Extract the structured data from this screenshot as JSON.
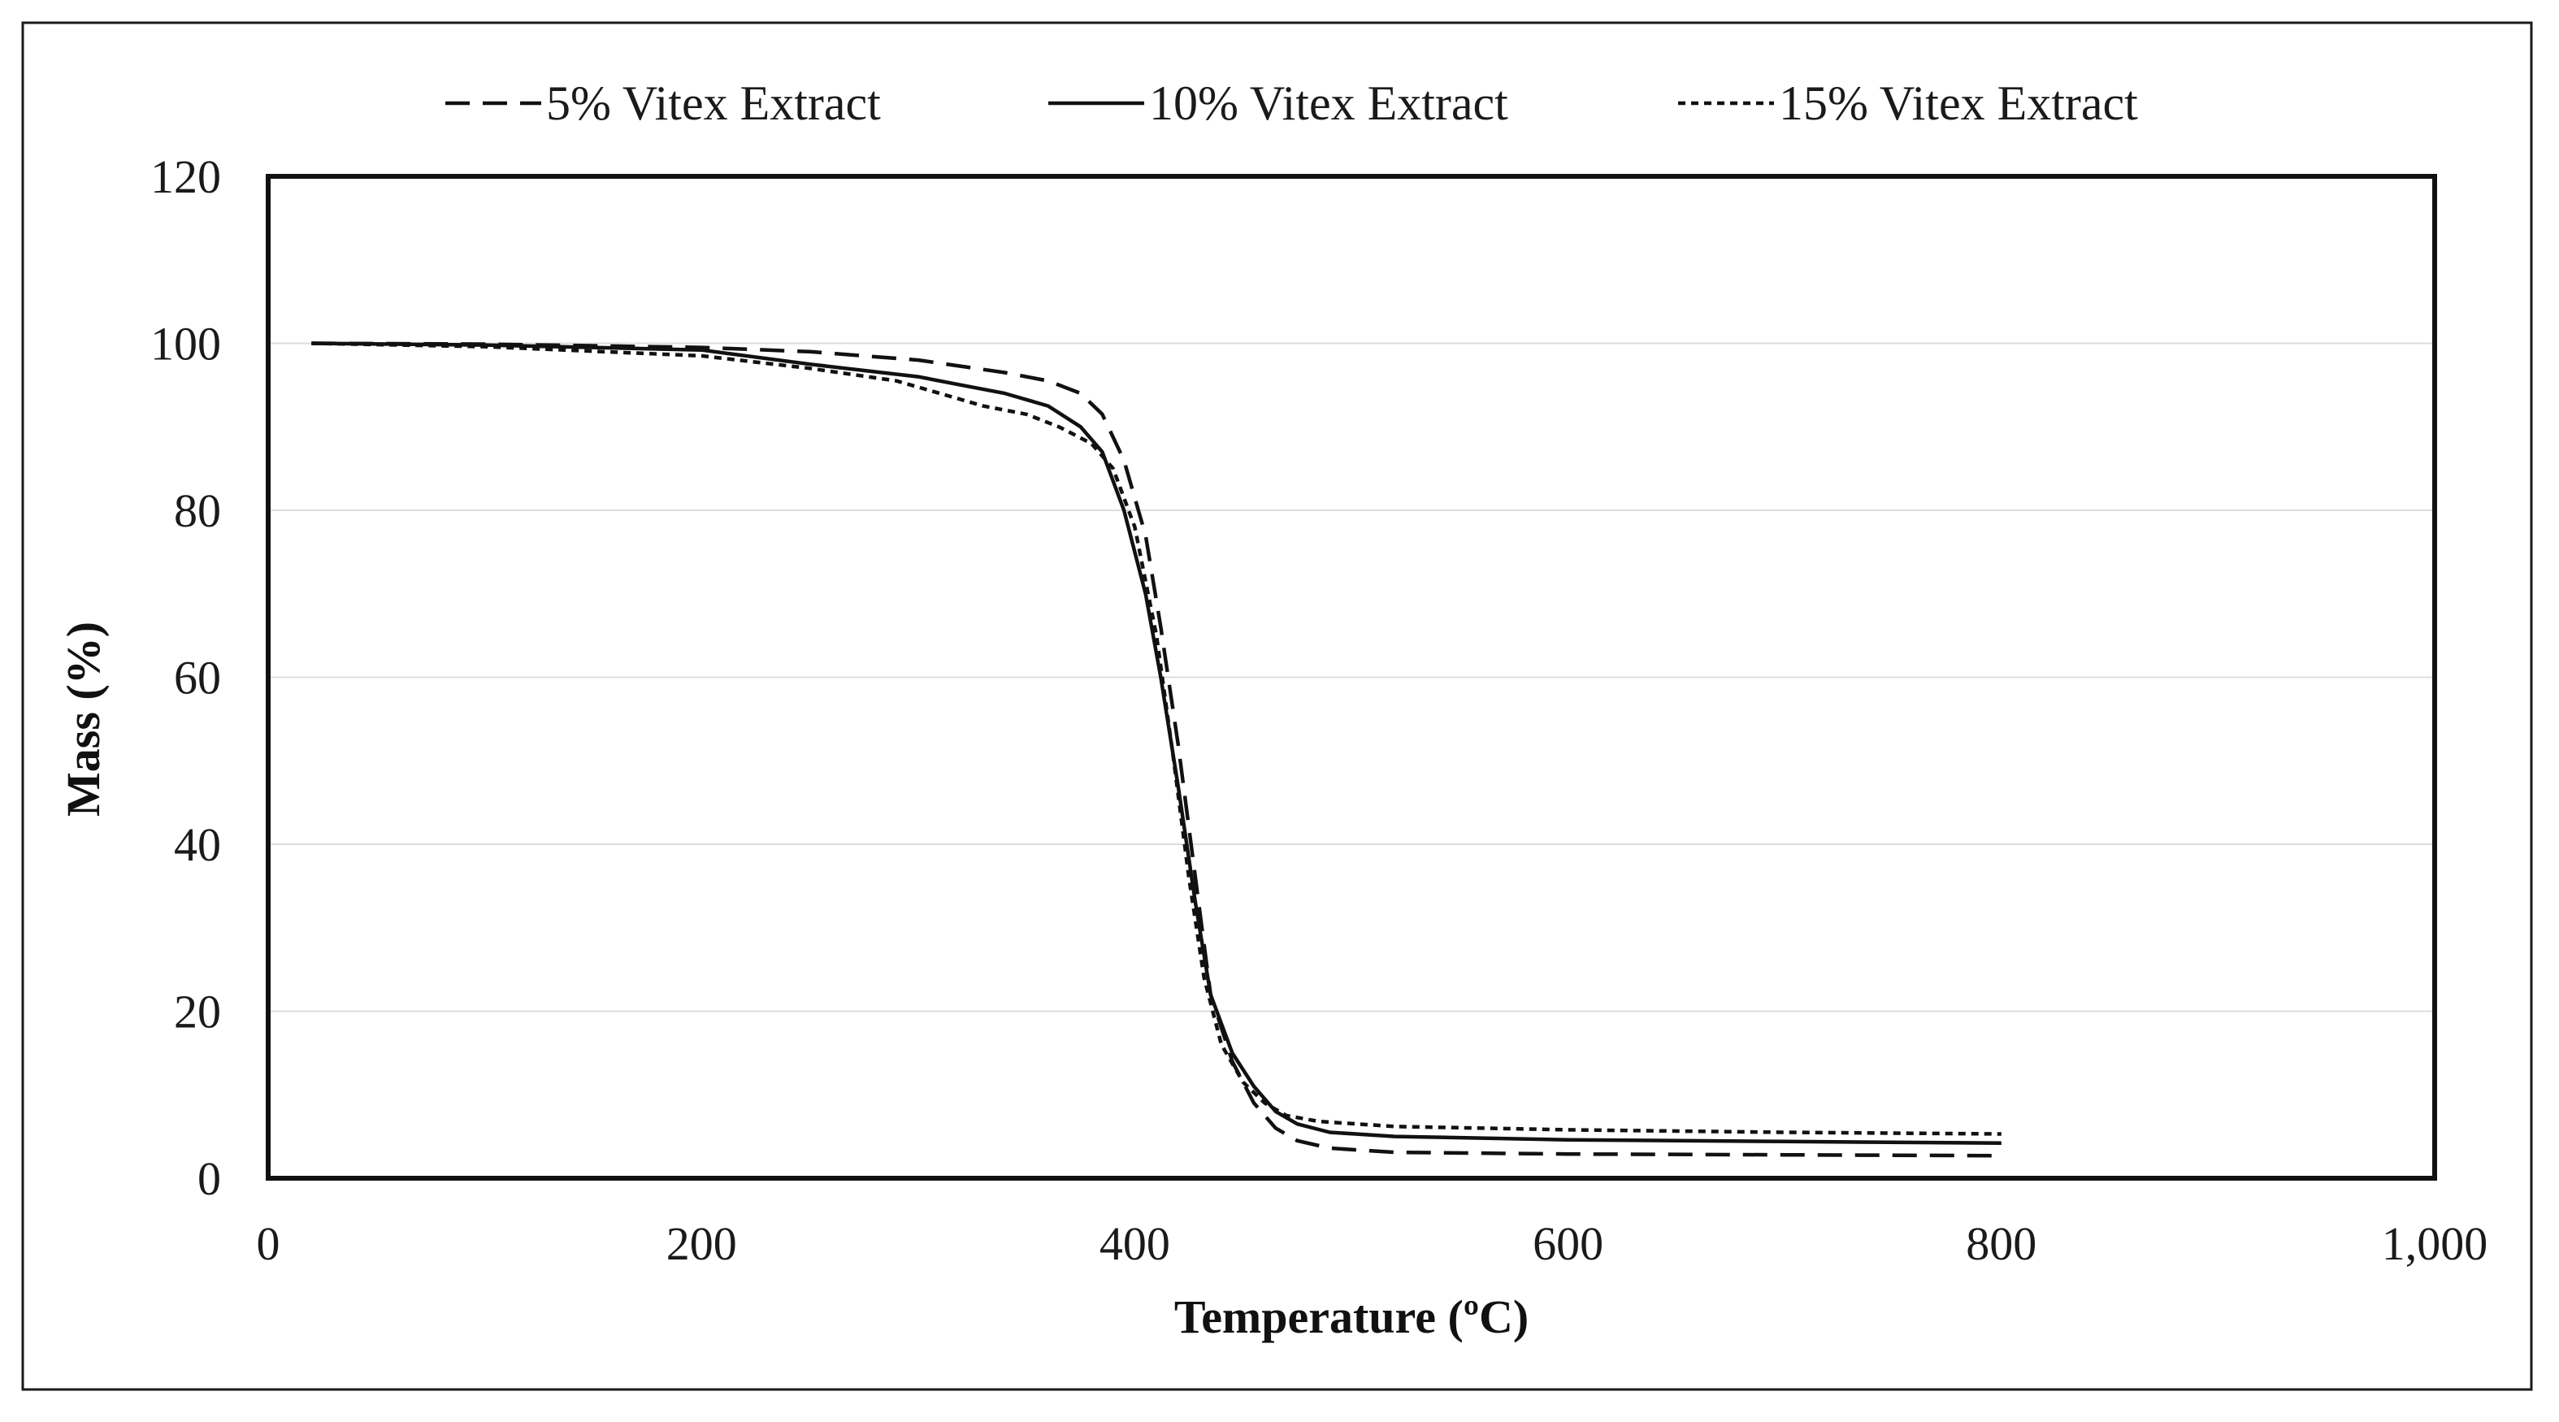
{
  "chart_data": {
    "type": "line",
    "title": "",
    "xlabel": "Temperature (ºC)",
    "ylabel": "Mass (%)",
    "xlim": [
      0,
      1000
    ],
    "ylim": [
      0,
      120
    ],
    "xticks": [
      0,
      200,
      400,
      600,
      800,
      1000
    ],
    "xtick_labels": [
      "0",
      "200",
      "400",
      "600",
      "800",
      "1,000"
    ],
    "yticks": [
      0,
      20,
      40,
      60,
      80,
      100,
      120
    ],
    "ytick_labels": [
      "0",
      "20",
      "40",
      "60",
      "80",
      "100",
      "120"
    ],
    "grid": true,
    "legend_position": "top",
    "series": [
      {
        "name": "5% Vitex Extract",
        "line_style": "dashed",
        "x": [
          20,
          100,
          200,
          250,
          300,
          340,
          360,
          375,
          385,
          395,
          405,
          412,
          420,
          428,
          435,
          445,
          455,
          465,
          475,
          490,
          520,
          600,
          700,
          800
        ],
        "y": [
          100,
          99.9,
          99.5,
          99,
          98,
          96.5,
          95.5,
          94,
          91.5,
          86,
          77,
          66,
          52,
          36,
          22,
          14,
          9,
          6,
          4.5,
          3.6,
          3.1,
          2.9,
          2.8,
          2.7
        ]
      },
      {
        "name": "10% Vitex Extract",
        "line_style": "solid",
        "x": [
          20,
          100,
          200,
          250,
          300,
          320,
          340,
          360,
          375,
          385,
          395,
          405,
          412,
          420,
          428,
          435,
          445,
          455,
          465,
          475,
          490,
          520,
          600,
          700,
          800
        ],
        "y": [
          100,
          99.8,
          99.2,
          97.5,
          96,
          95,
          94,
          92.5,
          90,
          87,
          80,
          70,
          60,
          47,
          33,
          22,
          15,
          11,
          8,
          6.5,
          5.5,
          5,
          4.6,
          4.4,
          4.2
        ]
      },
      {
        "name": "15% Vitex Extract",
        "line_style": "dotted",
        "x": [
          20,
          100,
          200,
          250,
          290,
          310,
          330,
          350,
          365,
          380,
          390,
          400,
          410,
          418,
          425,
          432,
          440,
          450,
          460,
          470,
          485,
          520,
          600,
          700,
          800
        ],
        "y": [
          100,
          99.6,
          98.5,
          97,
          95.5,
          94,
          92.5,
          91.5,
          90,
          88,
          85,
          78,
          65,
          50,
          36,
          24,
          16,
          11.5,
          9,
          7.5,
          6.8,
          6.2,
          5.8,
          5.5,
          5.3
        ]
      }
    ]
  }
}
